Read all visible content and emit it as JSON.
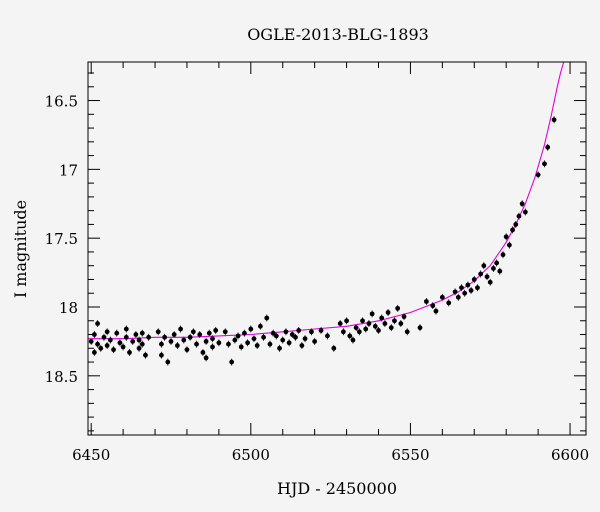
{
  "chart_data": {
    "type": "scatter",
    "title": "OGLE-2013-BLG-1893",
    "xlabel": "HJD - 2450000",
    "ylabel": "I magnitude",
    "xlim": [
      6449,
      6605
    ],
    "ylim": [
      18.93,
      16.22
    ],
    "y_inverted": true,
    "xticks": [
      6450,
      6500,
      6550,
      6600
    ],
    "yticks": [
      16.5,
      17,
      17.5,
      18,
      18.5
    ],
    "ytick_labels": [
      "16.5",
      "17",
      "17.5",
      "18",
      "18.5"
    ],
    "grid": false,
    "colors": {
      "points": "#000000",
      "model": "#e000e0",
      "background": "#f4f4f4"
    },
    "model_curve": {
      "name": "model",
      "x": [
        6449,
        6460,
        6470,
        6480,
        6490,
        6500,
        6510,
        6520,
        6530,
        6540,
        6550,
        6560,
        6565,
        6570,
        6575,
        6580,
        6583,
        6586,
        6589,
        6592,
        6594,
        6596,
        6597,
        6598
      ],
      "y": [
        18.23,
        18.23,
        18.22,
        18.22,
        18.21,
        18.2,
        18.18,
        18.16,
        18.14,
        18.1,
        18.04,
        17.95,
        17.89,
        17.81,
        17.7,
        17.53,
        17.4,
        17.25,
        17.06,
        16.82,
        16.62,
        16.4,
        16.3,
        16.22
      ]
    },
    "points": [
      [
        6450,
        18.25
      ],
      [
        6451,
        18.2
      ],
      [
        6451,
        18.33
      ],
      [
        6452,
        18.27
      ],
      [
        6452,
        18.12
      ],
      [
        6453,
        18.3
      ],
      [
        6454,
        18.22
      ],
      [
        6455,
        18.18
      ],
      [
        6455,
        18.28
      ],
      [
        6456,
        18.24
      ],
      [
        6457,
        18.31
      ],
      [
        6458,
        18.19
      ],
      [
        6459,
        18.26
      ],
      [
        6460,
        18.29
      ],
      [
        6461,
        18.22
      ],
      [
        6461,
        18.16
      ],
      [
        6462,
        18.33
      ],
      [
        6463,
        18.25
      ],
      [
        6464,
        18.2
      ],
      [
        6465,
        18.3
      ],
      [
        6465,
        18.24
      ],
      [
        6466,
        18.27
      ],
      [
        6466,
        18.19
      ],
      [
        6467,
        18.35
      ],
      [
        6468,
        18.22
      ],
      [
        6471,
        18.18
      ],
      [
        6472,
        18.27
      ],
      [
        6472,
        18.35
      ],
      [
        6473,
        18.22
      ],
      [
        6474,
        18.4
      ],
      [
        6475,
        18.25
      ],
      [
        6476,
        18.2
      ],
      [
        6477,
        18.28
      ],
      [
        6478,
        18.16
      ],
      [
        6479,
        18.24
      ],
      [
        6480,
        18.31
      ],
      [
        6481,
        18.22
      ],
      [
        6482,
        18.18
      ],
      [
        6483,
        18.27
      ],
      [
        6484,
        18.2
      ],
      [
        6485,
        18.33
      ],
      [
        6486,
        18.25
      ],
      [
        6486,
        18.37
      ],
      [
        6487,
        18.19
      ],
      [
        6488,
        18.29
      ],
      [
        6488,
        18.23
      ],
      [
        6489,
        18.17
      ],
      [
        6490,
        18.26
      ],
      [
        6492,
        18.18
      ],
      [
        6493,
        18.27
      ],
      [
        6494,
        18.4
      ],
      [
        6495,
        18.24
      ],
      [
        6496,
        18.21
      ],
      [
        6497,
        18.29
      ],
      [
        6498,
        18.19
      ],
      [
        6499,
        18.26
      ],
      [
        6500,
        18.16
      ],
      [
        6501,
        18.23
      ],
      [
        6502,
        18.28
      ],
      [
        6503,
        18.14
      ],
      [
        6504,
        18.22
      ],
      [
        6505,
        18.08
      ],
      [
        6506,
        18.27
      ],
      [
        6507,
        18.19
      ],
      [
        6508,
        18.21
      ],
      [
        6509,
        18.3
      ],
      [
        6510,
        18.24
      ],
      [
        6511,
        18.18
      ],
      [
        6512,
        18.26
      ],
      [
        6513,
        18.2
      ],
      [
        6514,
        18.22
      ],
      [
        6515,
        18.17
      ],
      [
        6516,
        18.28
      ],
      [
        6517,
        18.23
      ],
      [
        6519,
        18.18
      ],
      [
        6520,
        18.25
      ],
      [
        6522,
        18.17
      ],
      [
        6524,
        18.21
      ],
      [
        6526,
        18.3
      ],
      [
        6528,
        18.12
      ],
      [
        6529,
        18.18
      ],
      [
        6530,
        18.1
      ],
      [
        6531,
        18.21
      ],
      [
        6532,
        18.24
      ],
      [
        6533,
        18.15
      ],
      [
        6534,
        18.18
      ],
      [
        6535,
        18.1
      ],
      [
        6536,
        18.16
      ],
      [
        6537,
        18.12
      ],
      [
        6538,
        18.05
      ],
      [
        6539,
        18.14
      ],
      [
        6540,
        18.17
      ],
      [
        6541,
        18.08
      ],
      [
        6542,
        18.12
      ],
      [
        6543,
        18.04
      ],
      [
        6544,
        18.15
      ],
      [
        6545,
        18.1
      ],
      [
        6546,
        18.01
      ],
      [
        6547,
        18.12
      ],
      [
        6548,
        18.07
      ],
      [
        6549,
        18.18
      ],
      [
        6553,
        18.15
      ],
      [
        6555,
        17.96
      ],
      [
        6557,
        17.99
      ],
      [
        6558,
        18.03
      ],
      [
        6560,
        17.93
      ],
      [
        6562,
        17.97
      ],
      [
        6564,
        17.89
      ],
      [
        6565,
        17.93
      ],
      [
        6566,
        17.86
      ],
      [
        6567,
        17.9
      ],
      [
        6568,
        17.84
      ],
      [
        6569,
        17.88
      ],
      [
        6570,
        17.8
      ],
      [
        6571,
        17.86
      ],
      [
        6572,
        17.76
      ],
      [
        6573,
        17.7
      ],
      [
        6574,
        17.78
      ],
      [
        6575,
        17.82
      ],
      [
        6576,
        17.72
      ],
      [
        6577,
        17.68
      ],
      [
        6578,
        17.74
      ],
      [
        6579,
        17.62
      ],
      [
        6580,
        17.49
      ],
      [
        6581,
        17.55
      ],
      [
        6582,
        17.44
      ],
      [
        6583,
        17.4
      ],
      [
        6584,
        17.34
      ],
      [
        6585,
        17.25
      ],
      [
        6586,
        17.31
      ],
      [
        6590,
        17.04
      ],
      [
        6592,
        16.96
      ],
      [
        6593,
        16.84
      ],
      [
        6595,
        16.64
      ]
    ]
  }
}
